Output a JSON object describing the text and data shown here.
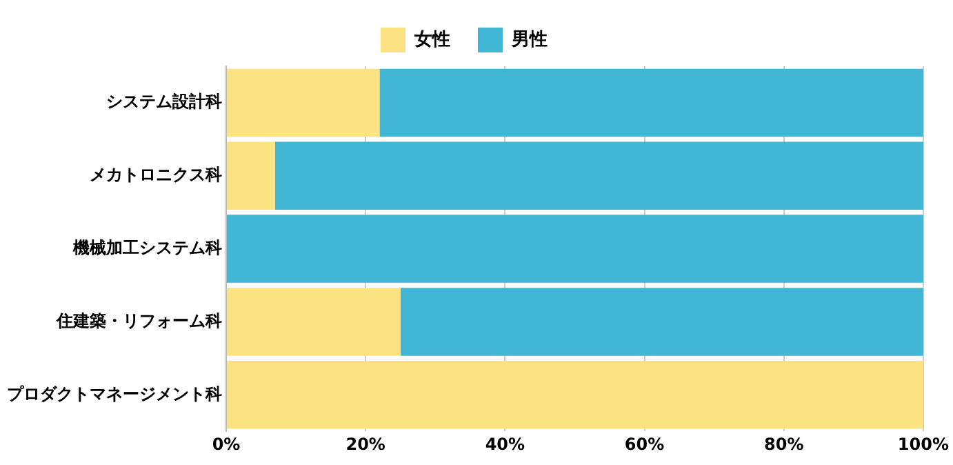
{
  "chart_data": {
    "type": "bar",
    "orientation": "horizontal",
    "stacked": true,
    "categories": [
      "システム設計科",
      "メカトロニクス科",
      "機械加工システム科",
      "住建築・リフォーム科",
      "プロダクトマネージメント科"
    ],
    "series": [
      {
        "name": "女性",
        "color": "#fde281",
        "values": [
          22,
          7,
          0,
          25,
          100
        ]
      },
      {
        "name": "男性",
        "color": "#41b6d5",
        "values": [
          78,
          93,
          100,
          75,
          0
        ]
      }
    ],
    "xlim": [
      0,
      100
    ],
    "xticks": [
      {
        "value": 0,
        "label": "0%"
      },
      {
        "value": 20,
        "label": "20%"
      },
      {
        "value": 40,
        "label": "40%"
      },
      {
        "value": 60,
        "label": "60%"
      },
      {
        "value": 80,
        "label": "80%"
      },
      {
        "value": 100,
        "label": "100%"
      }
    ],
    "grid": "x",
    "legend": "top"
  }
}
